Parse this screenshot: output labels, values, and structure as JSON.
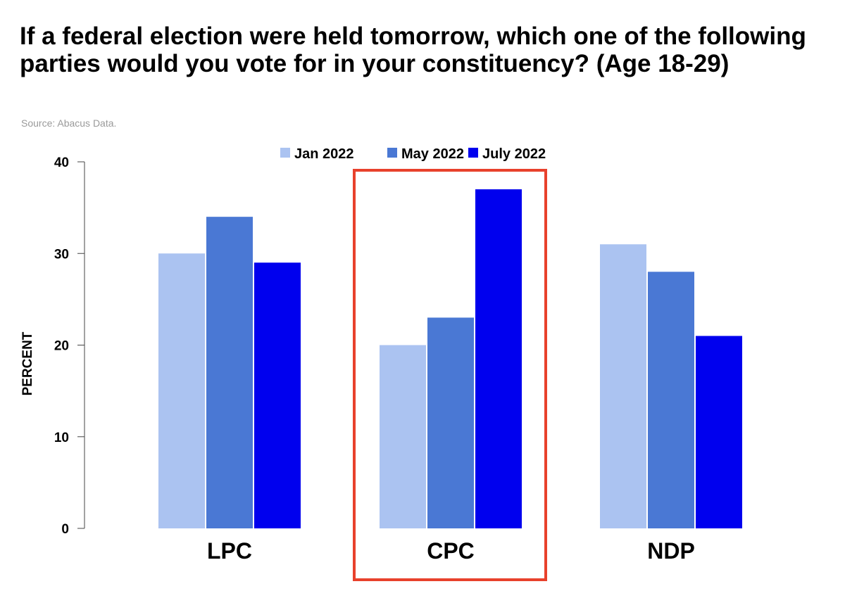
{
  "title": "If a federal election were held tomorrow, which one of the following parties would you vote for in your constituency? (Age 18-29)",
  "subtitle": "Source: Abacus Data.",
  "highlight_color": "#e8412c",
  "chart_data": {
    "type": "bar",
    "categories": [
      "LPC",
      "CPC",
      "NDP"
    ],
    "series": [
      {
        "name": "Jan 2022",
        "color": "#abc3f1",
        "values": [
          30,
          20,
          31
        ]
      },
      {
        "name": "May 2022",
        "color": "#4a78d4",
        "values": [
          34,
          23,
          28
        ]
      },
      {
        "name": "July 2022",
        "color": "#0000ee",
        "values": [
          29,
          37,
          21
        ]
      }
    ],
    "ylabel": "PERCENT",
    "xlabel": "",
    "ylim": [
      0,
      40
    ],
    "yticks": [
      0,
      10,
      20,
      30,
      40
    ],
    "legend_position": "top",
    "grid": false,
    "highlighted_category": "CPC"
  }
}
